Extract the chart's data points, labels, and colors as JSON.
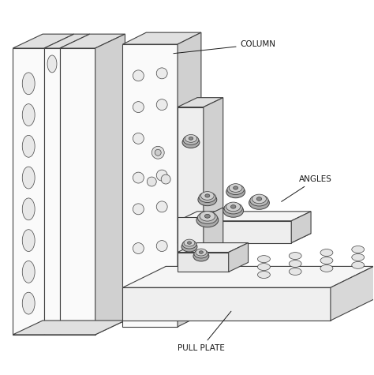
{
  "background_color": "#ffffff",
  "line_color": "#404040",
  "fill_front": "#f2f2f2",
  "fill_top": "#e0e0e0",
  "fill_side": "#d0d0d0",
  "fill_white": "#fafafa",
  "fill_nut": "#c8c8c8",
  "fill_nut_top": "#e8e8e8",
  "labels": {
    "column": "COLUMN",
    "angles": "ANGLES",
    "pull_plate": "PULL PLATE"
  },
  "font_size": 7.5,
  "figsize": [
    4.74,
    4.75
  ],
  "dpi": 100
}
